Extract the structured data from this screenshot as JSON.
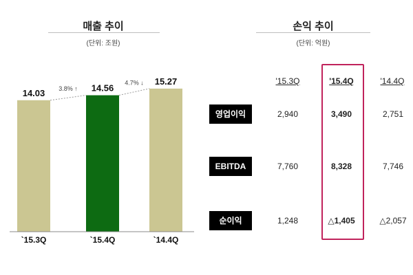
{
  "left_section": {
    "title": "매출 추이",
    "unit": "(단위: 조원)"
  },
  "right_section": {
    "title": "손익 추이",
    "unit": "(단위: 억원)"
  },
  "colors": {
    "bar_default": "#cbc692",
    "bar_highlight": "#0d6b12",
    "highlight_border": "#c0225b"
  },
  "chart_data": [
    {
      "type": "bar",
      "title": "매출 추이",
      "unit": "(단위: 조원)",
      "categories": [
        "`15.3Q",
        "`15.4Q",
        "`14.4Q"
      ],
      "values": [
        14.03,
        14.56,
        15.27
      ],
      "value_labels": [
        "14.03",
        "14.56",
        "15.27"
      ],
      "highlight_index": 1,
      "annotations": [
        "3.8% ↑",
        "4.7% ↓"
      ],
      "ylim": [
        0,
        16
      ]
    },
    {
      "type": "table",
      "title": "손익 추이",
      "unit": "(단위: 억원)",
      "columns": [
        "'15.3Q",
        "'15.4Q",
        "'14.4Q"
      ],
      "highlight_column": 1,
      "rows": [
        {
          "label": "영업이익",
          "values": [
            "2,940",
            "3,490",
            "2,751"
          ]
        },
        {
          "label": "EBITDA",
          "values": [
            "7,760",
            "8,328",
            "7,746"
          ]
        },
        {
          "label": "순이익",
          "values": [
            "1,248",
            "△1,405",
            "△2,057"
          ]
        }
      ]
    }
  ]
}
